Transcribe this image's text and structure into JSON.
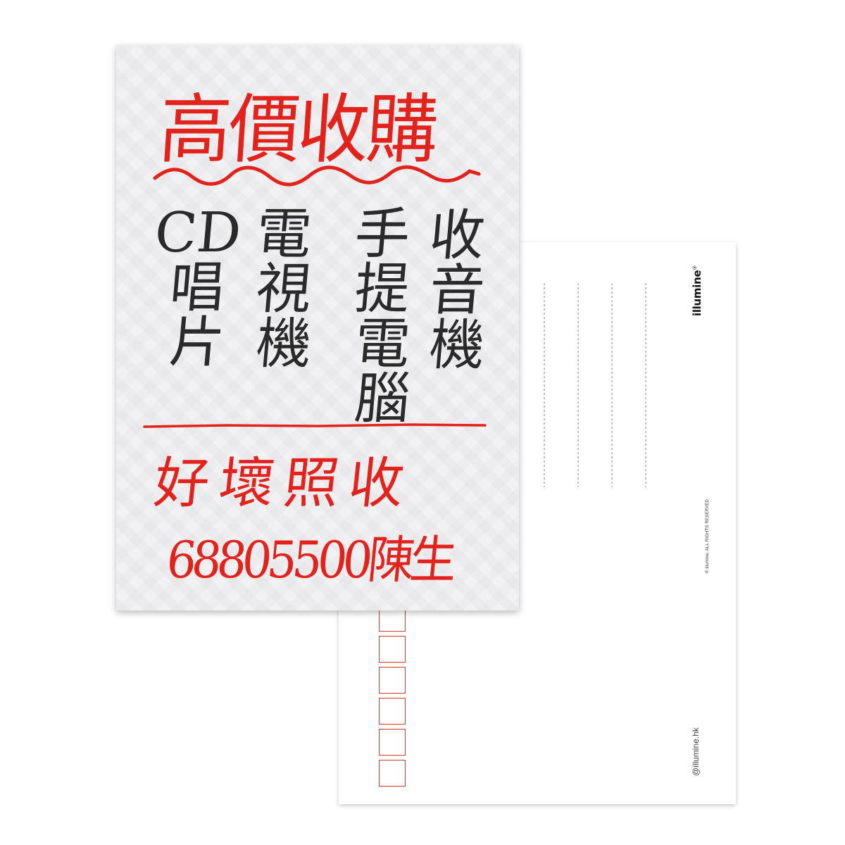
{
  "front": {
    "title": "高價收購",
    "columns": [
      [
        "CD",
        "唱",
        "片"
      ],
      [
        "電",
        "視",
        "機"
      ],
      [
        "手",
        "提",
        "電",
        "腦"
      ],
      [
        "收",
        "音",
        "機"
      ]
    ],
    "phrase": "好壞照收",
    "contact": "68805500陳生"
  },
  "back": {
    "brand": "illumine",
    "brand_mark": "®",
    "copyright": "© illumine. ALL RIGHTS RESERVED",
    "handle": "@illumine.hk",
    "postcode_box_count": 6
  },
  "colors": {
    "ink_red": "#e3221c",
    "ink_black": "#2a2a2a",
    "card_front": "#f1f1f4",
    "postcode_red": "#d83a2e"
  }
}
